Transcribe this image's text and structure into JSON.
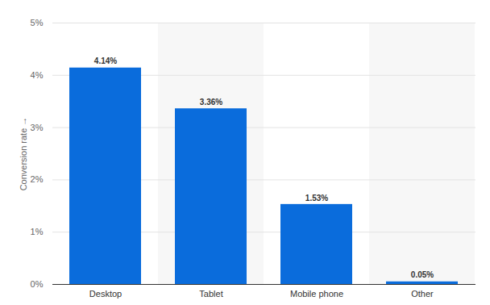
{
  "chart_data": {
    "type": "bar",
    "y_label": "Conversion rate",
    "categories": [
      "Desktop",
      "Tablet",
      "Mobile phone",
      "Other"
    ],
    "values": [
      4.14,
      3.36,
      1.53,
      0.05
    ],
    "value_labels": [
      "4.14%",
      "3.36%",
      "1.53%",
      "0.05%"
    ],
    "data_labels": true,
    "color": "#0a6cdc",
    "ylim": [
      0,
      5
    ],
    "yticks": [
      {
        "value": 0,
        "label": "0%"
      },
      {
        "value": 1,
        "label": "1%"
      },
      {
        "value": 2,
        "label": "2%"
      },
      {
        "value": 3,
        "label": "3%"
      },
      {
        "value": 4,
        "label": "4%"
      },
      {
        "value": 5,
        "label": "5%"
      }
    ],
    "grid": true
  }
}
